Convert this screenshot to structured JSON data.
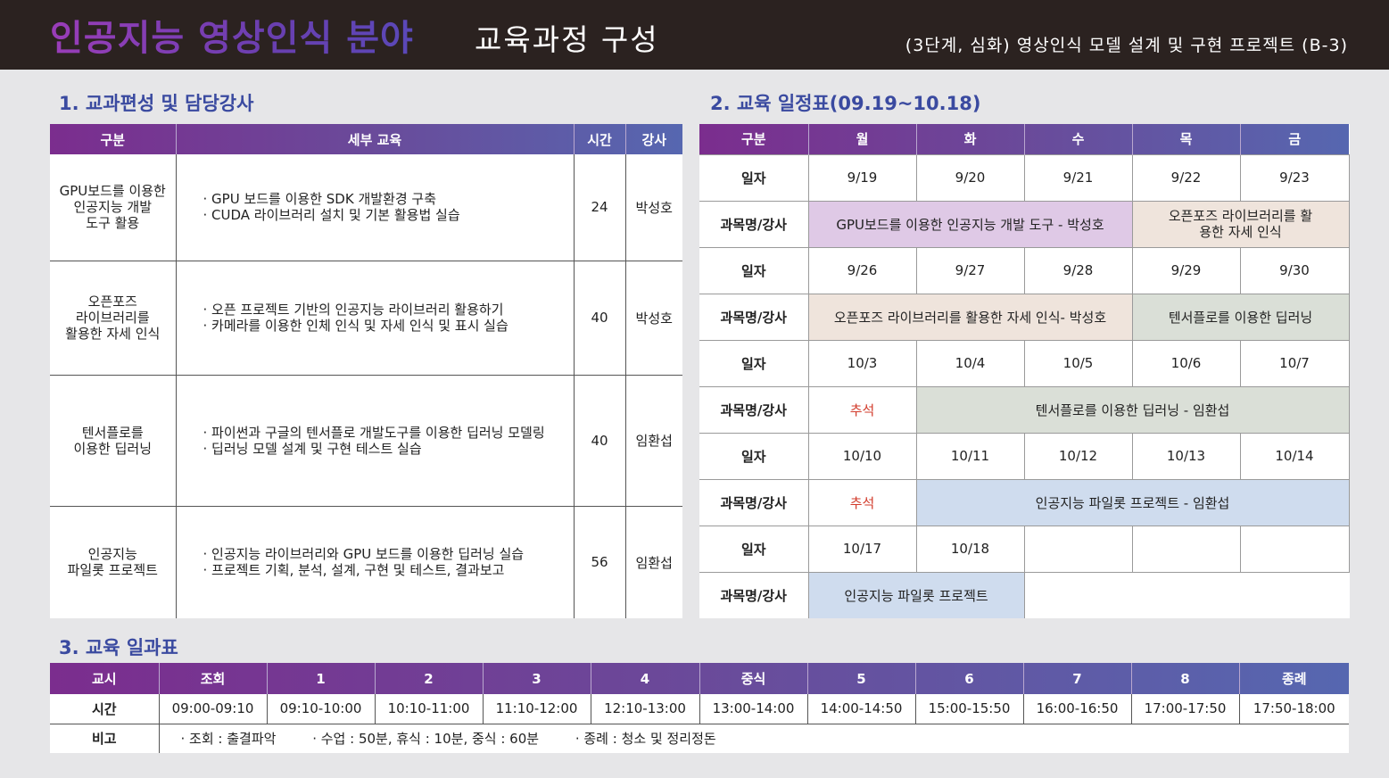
{
  "header": {
    "title_main": "인공지능 영상인식 분야",
    "title_sub": "교육과정 구성",
    "course": "(3단계, 심화) 영상인식 모델 설계 및 구현 프로젝트 (B-3)"
  },
  "sections": {
    "s1": "1. 교과편성 및 담당강사",
    "s2": "2. 교육 일정표(09.19~10.18)",
    "s3": "3. 교육 일과표"
  },
  "curriculum": {
    "headers": [
      "구분",
      "세부 교육",
      "시간",
      "강사"
    ],
    "rows": [
      {
        "cat": [
          "GPU보드를 이용한",
          "인공지능 개발",
          "도구 활용"
        ],
        "details": [
          "· GPU 보드를 이용한 SDK 개발환경 구축",
          "· CUDA 라이브러리 설치 및 기본 활용법 실습"
        ],
        "hours": "24",
        "teacher": "박성호"
      },
      {
        "cat": [
          "오픈포즈",
          "라이브러리를",
          "활용한 자세 인식"
        ],
        "details": [
          "· 오픈 프로젝트 기반의 인공지능 라이브러리 활용하기",
          "· 카메라를 이용한 인체 인식 및 자세 인식 및 표시 실습"
        ],
        "hours": "40",
        "teacher": "박성호"
      },
      {
        "cat": [
          "텐서플로를",
          "이용한 딥러닝"
        ],
        "details": [
          "· 파이썬과 구글의 텐서플로 개발도구를 이용한 딥러닝 모델링",
          "· 딥러닝 모델 설계 및 구현 테스트 실습"
        ],
        "hours": "40",
        "teacher": "임환섭"
      },
      {
        "cat": [
          "인공지능",
          "파일롯 프로젝트"
        ],
        "details": [
          "· 인공지능 라이브러리와 GPU 보드를 이용한 딥러닝 실습",
          "· 프로젝트 기획, 분석, 설계, 구현 및 테스트, 결과보고"
        ],
        "hours": "56",
        "teacher": "임환섭"
      }
    ]
  },
  "schedule": {
    "headers": [
      "구분",
      "월",
      "화",
      "수",
      "목",
      "금"
    ],
    "date_label": "일자",
    "subject_label": "과목명/강사",
    "week1_dates": [
      "9/19",
      "9/20",
      "9/21",
      "9/22",
      "9/23"
    ],
    "week1_subj_a": "GPU보드를 이용한 인공지능 개발 도구 - 박성호",
    "week1_subj_b": "오픈포즈 라이브러리를 활용한 자세 인식",
    "week2_dates": [
      "9/26",
      "9/27",
      "9/28",
      "9/29",
      "9/30"
    ],
    "week2_subj_a": "오픈포즈 라이브러리를 활용한 자세 인식- 박성호",
    "week2_subj_b": "텐서플로를 이용한 딥러닝",
    "week3_dates": [
      "10/3",
      "10/4",
      "10/5",
      "10/6",
      "10/7"
    ],
    "week3_holiday": "추석",
    "week3_subj": "텐서플로를 이용한 딥러닝 - 임환섭",
    "week4_dates": [
      "10/10",
      "10/11",
      "10/12",
      "10/13",
      "10/14"
    ],
    "week4_holiday": "추석",
    "week4_subj": "인공지능 파일롯 프로젝트 - 임환섭",
    "week5_dates": [
      "10/17",
      "10/18"
    ],
    "week5_subj": "인공지능 파일롯 프로젝트"
  },
  "timetable": {
    "headers": [
      "교시",
      "조회",
      "1",
      "2",
      "3",
      "4",
      "중식",
      "5",
      "6",
      "7",
      "8",
      "종례"
    ],
    "time_label": "시간",
    "times": [
      "09:00-09:10",
      "09:10-10:00",
      "10:10-11:00",
      "11:10-12:00",
      "12:10-13:00",
      "13:00-14:00",
      "14:00-14:50",
      "15:00-15:50",
      "16:00-16:50",
      "17:00-17:50",
      "17:50-18:00"
    ],
    "note_label": "비고",
    "notes": [
      "· 조회 : 출결파악",
      "· 수업 : 50분, 휴식 : 10분, 중식 : 60분",
      "· 종례 : 청소 및 정리정돈"
    ]
  }
}
